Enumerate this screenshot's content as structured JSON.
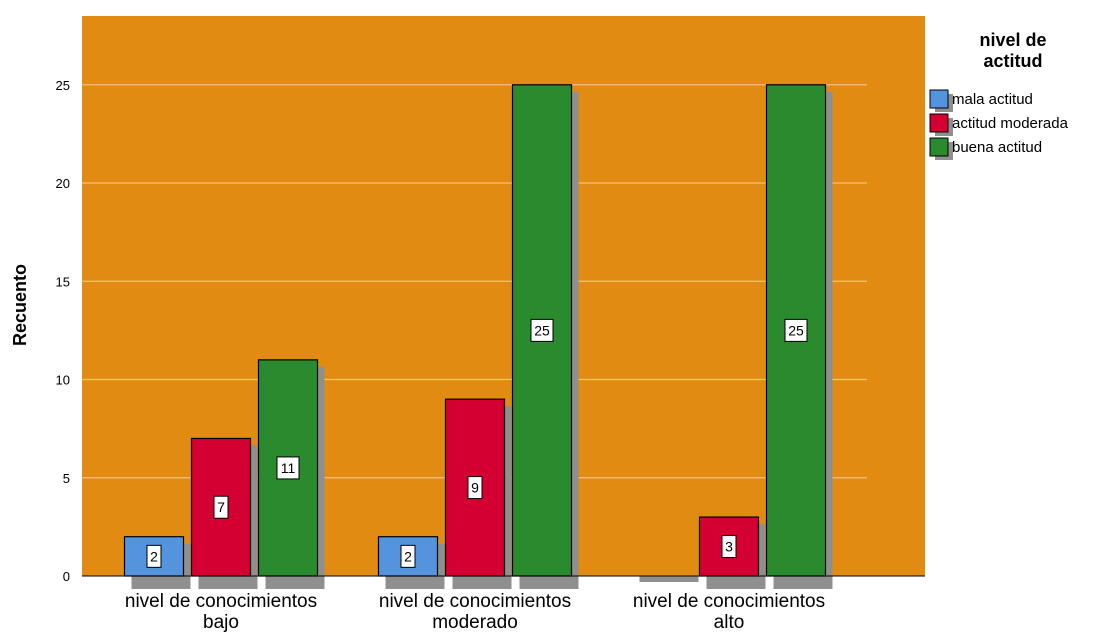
{
  "chart_data": {
    "type": "bar",
    "title": "",
    "xlabel": "",
    "ylabel": "Recuento",
    "ylim": [
      0,
      28.5
    ],
    "yticks": [
      0,
      5,
      10,
      15,
      20,
      25
    ],
    "grid": true,
    "legend_title": [
      "nivel de",
      "actitud"
    ],
    "legend_position": "right",
    "categories": [
      [
        "nivel de conocimientos",
        "bajo"
      ],
      [
        "nivel de conocimientos",
        "moderado"
      ],
      [
        "nivel de conocimientos",
        "alto"
      ]
    ],
    "series": [
      {
        "name": "mala actitud",
        "color": "#5493DE",
        "values": [
          2,
          2,
          0
        ]
      },
      {
        "name": "actitud moderada",
        "color": "#D40031",
        "values": [
          7,
          9,
          3
        ]
      },
      {
        "name": "buena actitud",
        "color": "#2A8A2E",
        "values": [
          11,
          25,
          25
        ]
      }
    ],
    "colors": {
      "plot_background": "#E28B12",
      "gridline": "#F1C07E",
      "shadow": "#8F8F8F",
      "bar_border": "#000000"
    }
  }
}
